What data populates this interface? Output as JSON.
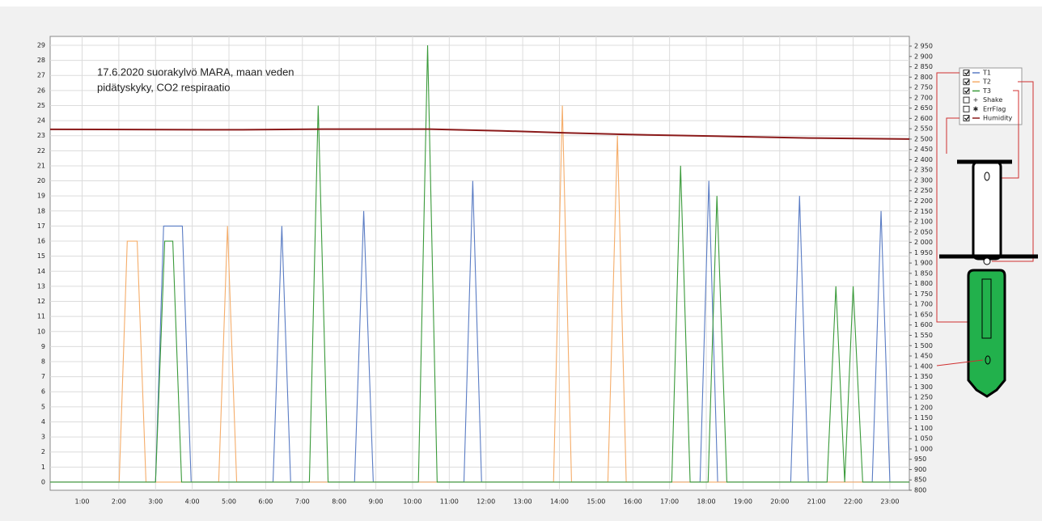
{
  "chart_data": {
    "type": "line",
    "annotation": [
      "17.6.2020 suorakylvö MARA, maan veden",
      "pidätyskyky, CO2 respiraatio"
    ],
    "xlim": [
      0.13,
      23.53
    ],
    "xticks": [
      {
        "value": 1,
        "label": "1:00"
      },
      {
        "value": 2,
        "label": "2:00"
      },
      {
        "value": 3,
        "label": "3:00"
      },
      {
        "value": 4,
        "label": "4:00"
      },
      {
        "value": 5,
        "label": "5:00"
      },
      {
        "value": 6,
        "label": "6:00"
      },
      {
        "value": 7,
        "label": "7:00"
      },
      {
        "value": 8,
        "label": "8:00"
      },
      {
        "value": 9,
        "label": "9:00"
      },
      {
        "value": 10,
        "label": "10:00"
      },
      {
        "value": 11,
        "label": "11:00"
      },
      {
        "value": 12,
        "label": "12:00"
      },
      {
        "value": 13,
        "label": "13:00"
      },
      {
        "value": 14,
        "label": "14:00"
      },
      {
        "value": 15,
        "label": "15:00"
      },
      {
        "value": 16,
        "label": "16:00"
      },
      {
        "value": 17,
        "label": "17:00"
      },
      {
        "value": 18,
        "label": "18:00"
      },
      {
        "value": 19,
        "label": "19:00"
      },
      {
        "value": 20,
        "label": "20:00"
      },
      {
        "value": 21,
        "label": "21:00"
      },
      {
        "value": 22,
        "label": "22:00"
      },
      {
        "value": 23,
        "label": "23:00"
      }
    ],
    "ylim": [
      -0.54,
      29.59
    ],
    "yticks": [
      0,
      1,
      2,
      3,
      4,
      5,
      6,
      7,
      8,
      9,
      10,
      11,
      12,
      13,
      14,
      15,
      16,
      17,
      18,
      19,
      20,
      21,
      22,
      23,
      24,
      25,
      26,
      27,
      28,
      29
    ],
    "y2lim": [
      800,
      2997
    ],
    "y2ticks": [
      800,
      850,
      900,
      950,
      {
        "value": 1000,
        "label": "1 000"
      },
      {
        "value": 1050,
        "label": "1 050"
      },
      {
        "value": 1100,
        "label": "1 100"
      },
      {
        "value": 1150,
        "label": "1 150"
      },
      {
        "value": 1200,
        "label": "1 200"
      },
      {
        "value": 1250,
        "label": "1 250"
      },
      {
        "value": 1300,
        "label": "1 300"
      },
      {
        "value": 1350,
        "label": "1 350"
      },
      {
        "value": 1400,
        "label": "1 400"
      },
      {
        "value": 1450,
        "label": "1 450"
      },
      {
        "value": 1500,
        "label": "1 500"
      },
      {
        "value": 1550,
        "label": "1 550"
      },
      {
        "value": 1600,
        "label": "1 600"
      },
      {
        "value": 1650,
        "label": "1 650"
      },
      {
        "value": 1700,
        "label": "1 700"
      },
      {
        "value": 1750,
        "label": "1 750"
      },
      {
        "value": 1800,
        "label": "1 800"
      },
      {
        "value": 1850,
        "label": "1 850"
      },
      {
        "value": 1900,
        "label": "1 900"
      },
      {
        "value": 1950,
        "label": "1 950"
      },
      {
        "value": 2000,
        "label": "2 000"
      },
      {
        "value": 2050,
        "label": "2 050"
      },
      {
        "value": 2100,
        "label": "2 100"
      },
      {
        "value": 2150,
        "label": "2 150"
      },
      {
        "value": 2200,
        "label": "2 200"
      },
      {
        "value": 2250,
        "label": "2 250"
      },
      {
        "value": 2300,
        "label": "2 300"
      },
      {
        "value": 2350,
        "label": "2 350"
      },
      {
        "value": 2400,
        "label": "2 400"
      },
      {
        "value": 2450,
        "label": "2 450"
      },
      {
        "value": 2500,
        "label": "2 500"
      },
      {
        "value": 2550,
        "label": "2 550"
      },
      {
        "value": 2600,
        "label": "2 600"
      },
      {
        "value": 2650,
        "label": "2 650"
      },
      {
        "value": 2700,
        "label": "2 700"
      },
      {
        "value": 2750,
        "label": "2 750"
      },
      {
        "value": 2800,
        "label": "2 800"
      },
      {
        "value": 2850,
        "label": "2 850"
      },
      {
        "value": 2900,
        "label": "2 900"
      },
      {
        "value": 2950,
        "label": "2 950"
      }
    ],
    "grid": true,
    "series": [
      {
        "name": "T1",
        "color": "#5a7cc4",
        "checked": true,
        "x": [
          0.13,
          3.0,
          3.22,
          3.73,
          3.97,
          6.2,
          6.44,
          6.68,
          8.42,
          8.67,
          8.93,
          11.4,
          11.64,
          11.88,
          17.83,
          18.07,
          18.31,
          20.3,
          20.54,
          20.78,
          22.52,
          22.76,
          23.0,
          23.53
        ],
        "values": [
          0,
          0,
          17,
          17,
          0,
          0,
          17,
          0,
          0,
          18,
          0,
          0,
          20,
          0,
          0,
          20,
          0,
          0,
          19,
          0,
          0,
          18,
          0,
          0
        ]
      },
      {
        "name": "T2",
        "color": "#f5ad6a",
        "checked": true,
        "x": [
          0.13,
          2.01,
          2.23,
          2.5,
          2.74,
          4.72,
          4.96,
          5.21,
          13.84,
          14.08,
          14.33,
          15.32,
          15.58,
          15.82,
          23.53
        ],
        "values": [
          0,
          0,
          16,
          16,
          0,
          0,
          17,
          0,
          0,
          25,
          0,
          0,
          23,
          0,
          0
        ]
      },
      {
        "name": "T3",
        "color": "#3a9a3a",
        "checked": true,
        "x": [
          0.13,
          3.0,
          3.25,
          3.47,
          3.71,
          7.19,
          7.43,
          7.7,
          10.16,
          10.41,
          10.67,
          17.06,
          17.3,
          17.56,
          18.05,
          18.29,
          18.56,
          21.29,
          21.53,
          21.77,
          22.0,
          22.26,
          23.53
        ],
        "values": [
          0,
          0,
          16,
          16,
          0,
          0,
          25,
          0,
          0,
          29,
          0,
          0,
          21,
          0,
          0,
          19,
          0,
          0,
          13,
          0,
          13,
          0,
          0
        ]
      },
      {
        "name": "Humidity",
        "color": "#8b1a1a",
        "checked": true,
        "axis": "y2",
        "x": [
          0.13,
          5.38,
          7.59,
          10.45,
          12.43,
          14.19,
          16.4,
          18.6,
          20.8,
          23.53
        ],
        "values": [
          2547,
          2545,
          2548,
          2548,
          2540,
          2530,
          2520,
          2513,
          2505,
          2500
        ]
      }
    ],
    "other_legend_items": [
      {
        "name": "Shake",
        "checked": false,
        "marker": "+"
      },
      {
        "name": "ErrFlag",
        "checked": false,
        "marker": "✱"
      }
    ]
  }
}
